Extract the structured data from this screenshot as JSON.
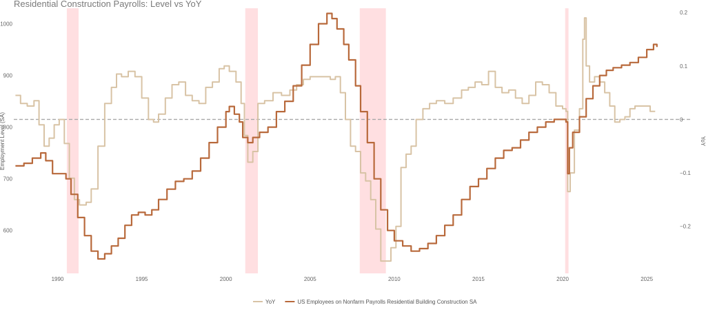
{
  "chart_data": {
    "type": "line",
    "title": "Residential Construction Payrolls: Level vs YoY",
    "ylabel_left": "Employment Level (SA)",
    "ylabel_right": "YoY",
    "x_range": [
      1987.4,
      2026.1
    ],
    "ylim_left": [
      517,
      1030
    ],
    "ylim_right": [
      -0.288,
      0.208
    ],
    "x_ticks": [
      1990,
      1995,
      2000,
      2005,
      2010,
      2015,
      2020,
      2025
    ],
    "y_ticks_left": [
      600,
      700,
      800,
      900,
      1000
    ],
    "y_ticks_right": [
      -0.2,
      -0.1,
      0,
      0.1,
      0.2
    ],
    "y_tick_labels_right": [
      "−0.2",
      "−0.1",
      "0",
      "0.1",
      "0.2"
    ],
    "grid": false,
    "legend_position": "bottom-center",
    "zero_line": {
      "value": 0,
      "style": "dashed",
      "color": "#a8a8a8"
    },
    "recessions": [
      {
        "start": 1990.55,
        "end": 1991.25
      },
      {
        "start": 2001.15,
        "end": 2001.9
      },
      {
        "start": 2007.95,
        "end": 2009.5
      },
      {
        "start": 2020.15,
        "end": 2020.35
      }
    ],
    "series": [
      {
        "name": "YoY",
        "axis": "right",
        "color": "#d8c3a5",
        "x": [
          1987.5,
          1987.8,
          1988.2,
          1988.6,
          1988.9,
          1989.2,
          1989.5,
          1989.8,
          1990.1,
          1990.4,
          1990.7,
          1991.0,
          1991.3,
          1991.7,
          1992.0,
          1992.4,
          1992.8,
          1993.2,
          1993.5,
          1993.8,
          1994.2,
          1994.6,
          1995.0,
          1995.4,
          1995.7,
          1996.0,
          1996.4,
          1996.8,
          1997.2,
          1997.6,
          1998.0,
          1998.4,
          1998.8,
          1999.2,
          1999.6,
          1999.9,
          2000.2,
          2000.6,
          2000.9,
          2001.1,
          2001.3,
          2001.6,
          2001.9,
          2002.3,
          2002.8,
          2003.3,
          2003.8,
          2004.2,
          2004.6,
          2005.0,
          2005.4,
          2005.8,
          2006.2,
          2006.5,
          2006.8,
          2007.1,
          2007.4,
          2007.7,
          2008.0,
          2008.3,
          2008.6,
          2008.9,
          2009.2,
          2009.5,
          2009.8,
          2010.1,
          2010.4,
          2010.7,
          2011.0,
          2011.3,
          2011.7,
          2012.1,
          2012.5,
          2013.0,
          2013.5,
          2014.0,
          2014.4,
          2014.8,
          2015.2,
          2015.6,
          2016.0,
          2016.4,
          2016.8,
          2017.2,
          2017.6,
          2018.0,
          2018.4,
          2018.8,
          2019.2,
          2019.6,
          2020.0,
          2020.2,
          2020.3,
          2020.45,
          2020.7,
          2021.0,
          2021.2,
          2021.3,
          2021.4,
          2021.6,
          2021.9,
          2022.2,
          2022.5,
          2022.8,
          2023.1,
          2023.4,
          2023.7,
          2024.0,
          2024.3,
          2024.6,
          2024.9,
          2025.2,
          2025.5
        ],
        "values": [
          0.045,
          0.03,
          0.025,
          0.035,
          -0.01,
          -0.05,
          -0.035,
          -0.01,
          0.0,
          -0.045,
          -0.11,
          -0.15,
          -0.16,
          -0.155,
          -0.13,
          -0.05,
          0.03,
          0.06,
          0.085,
          0.08,
          0.09,
          0.08,
          0.04,
          0.0,
          -0.005,
          0.01,
          0.04,
          0.065,
          0.07,
          0.045,
          0.035,
          0.03,
          0.06,
          0.07,
          0.095,
          0.1,
          0.09,
          0.07,
          0.03,
          -0.03,
          -0.08,
          -0.06,
          0.03,
          0.035,
          0.05,
          0.045,
          0.055,
          0.065,
          0.075,
          0.08,
          0.08,
          0.08,
          0.075,
          0.08,
          0.05,
          0.0,
          -0.05,
          -0.06,
          -0.1,
          -0.115,
          -0.15,
          -0.205,
          -0.265,
          -0.265,
          -0.24,
          -0.2,
          -0.09,
          -0.065,
          -0.05,
          0.0,
          0.02,
          0.03,
          0.035,
          0.03,
          0.04,
          0.055,
          0.06,
          0.07,
          0.065,
          0.09,
          0.06,
          0.05,
          0.055,
          0.04,
          0.03,
          0.045,
          0.07,
          0.065,
          0.05,
          0.025,
          0.02,
          0.015,
          -0.135,
          -0.1,
          -0.02,
          0.02,
          0.15,
          0.19,
          0.1,
          0.07,
          0.08,
          0.07,
          0.05,
          0.025,
          -0.005,
          0.0,
          0.005,
          0.02,
          0.025,
          0.025,
          0.025,
          0.015,
          0.015
        ]
      },
      {
        "name": "US Employees on Nonfarm Payrolls Residential Building Construction SA",
        "axis": "left",
        "color": "#b8693b",
        "x": [
          1987.5,
          1988.0,
          1988.5,
          1989.0,
          1989.3,
          1989.7,
          1990.0,
          1990.5,
          1990.8,
          1991.2,
          1991.6,
          1992.0,
          1992.4,
          1992.8,
          1993.2,
          1993.6,
          1994.0,
          1994.4,
          1994.8,
          1995.2,
          1995.6,
          1996.0,
          1996.5,
          1997.0,
          1997.5,
          1998.0,
          1998.5,
          1999.0,
          1999.5,
          2000.0,
          2000.2,
          2000.5,
          2000.8,
          2001.0,
          2001.3,
          2001.6,
          2002.0,
          2002.5,
          2003.0,
          2003.5,
          2004.0,
          2004.5,
          2005.0,
          2005.5,
          2006.0,
          2006.3,
          2006.6,
          2007.0,
          2007.3,
          2007.7,
          2008.0,
          2008.4,
          2008.8,
          2009.2,
          2009.6,
          2010.0,
          2010.5,
          2011.0,
          2011.5,
          2012.0,
          2012.5,
          2013.0,
          2013.5,
          2014.0,
          2014.5,
          2015.0,
          2015.5,
          2016.0,
          2016.5,
          2017.0,
          2017.5,
          2018.0,
          2018.5,
          2019.0,
          2019.5,
          2020.0,
          2020.2,
          2020.3,
          2020.4,
          2020.6,
          2021.0,
          2021.4,
          2021.8,
          2022.2,
          2022.6,
          2023.0,
          2023.5,
          2024.0,
          2024.5,
          2025.0,
          2025.4,
          2025.6
        ],
        "values": [
          725,
          730,
          740,
          750,
          735,
          710,
          710,
          700,
          670,
          625,
          590,
          560,
          545,
          555,
          570,
          585,
          610,
          630,
          635,
          630,
          640,
          660,
          680,
          695,
          700,
          715,
          740,
          770,
          800,
          830,
          840,
          825,
          810,
          780,
          770,
          780,
          790,
          800,
          830,
          850,
          880,
          920,
          960,
          1000,
          1020,
          1010,
          990,
          960,
          930,
          880,
          830,
          770,
          700,
          640,
          600,
          580,
          570,
          560,
          565,
          575,
          590,
          610,
          630,
          660,
          685,
          700,
          720,
          740,
          755,
          760,
          775,
          790,
          800,
          810,
          815,
          815,
          810,
          710,
          760,
          790,
          820,
          855,
          880,
          900,
          910,
          915,
          920,
          925,
          935,
          950,
          960,
          955
        ]
      }
    ]
  }
}
